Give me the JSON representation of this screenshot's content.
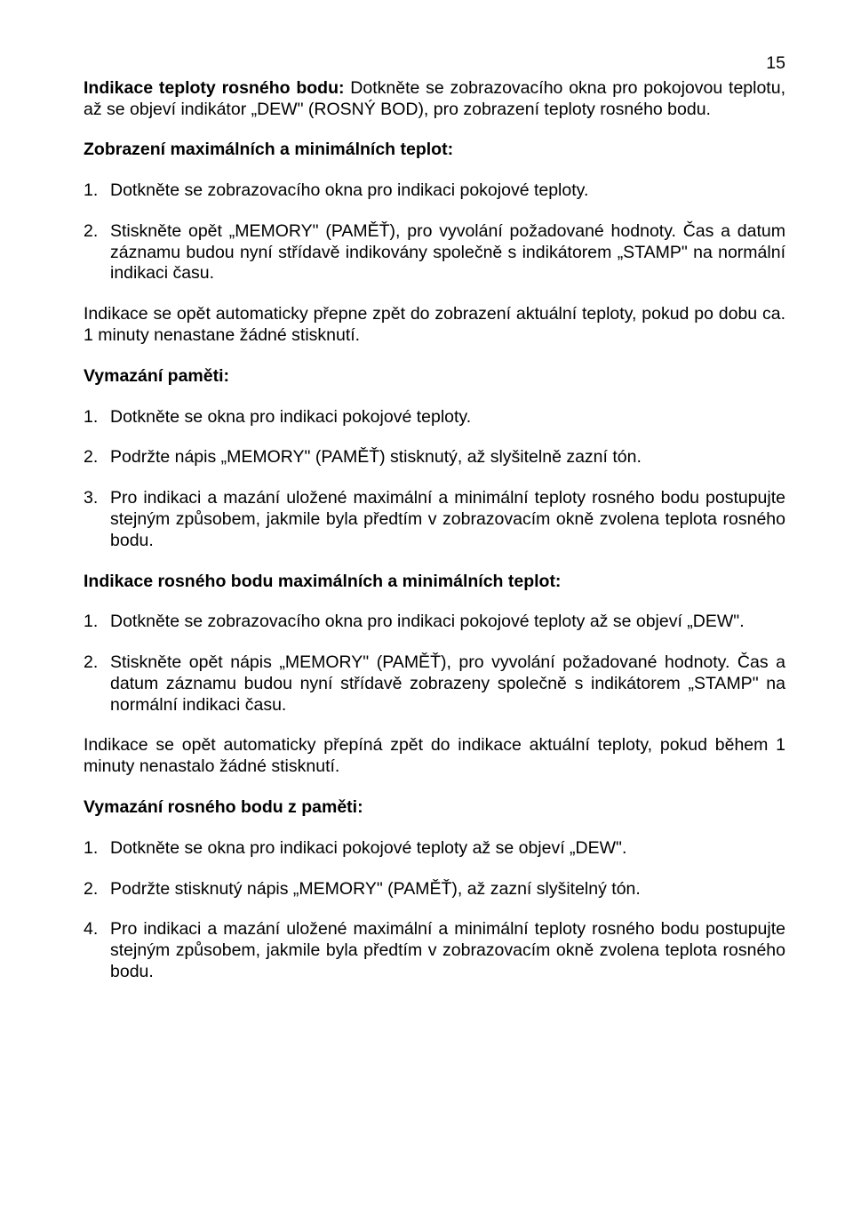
{
  "page_number": "15",
  "p1": {
    "bold": "Indikace teploty rosného bodu:",
    "rest": " Dotkněte se zobrazovacího okna pro pokojovou teplotu, až se objeví indikátor „DEW\" (ROSNÝ BOD), pro zobrazení teploty rosného bodu."
  },
  "h1": "Zobrazení maximálních a minimálních teplot:",
  "list1": [
    {
      "n": "1.",
      "t": "Dotkněte se zobrazovacího okna pro indikaci pokojové teploty."
    },
    {
      "n": "2.",
      "t": "Stiskněte opět „MEMORY\" (PAMĚŤ), pro vyvolání požadované hodnoty. Čas a datum záznamu budou nyní střídavě indikovány společně s indikátorem „STAMP\" na normální indikaci času."
    }
  ],
  "p2": "Indikace se opět automaticky přepne zpět do zobrazení aktuální teploty, pokud po dobu ca. 1 minuty nenastane žádné stisknutí.",
  "h2": "Vymazání paměti:",
  "list2": [
    {
      "n": "1.",
      "t": "Dotkněte se okna pro indikaci pokojové teploty."
    },
    {
      "n": "2.",
      "t": "Podržte nápis „MEMORY\" (PAMĚŤ) stisknutý, až slyšitelně zazní tón."
    },
    {
      "n": "3.",
      "t": "Pro indikaci a mazání uložené maximální a minimální teploty rosného bodu postupujte stejným způsobem, jakmile byla předtím v zobrazovacím okně zvolena teplota rosného bodu."
    }
  ],
  "h3": "Indikace rosného bodu maximálních a minimálních teplot:",
  "list3": [
    {
      "n": "1.",
      "t": "Dotkněte se zobrazovacího okna pro indikaci pokojové teploty až se objeví „DEW\"."
    },
    {
      "n": "2.",
      "t": "Stiskněte opět nápis „MEMORY\" (PAMĚŤ), pro vyvolání požadované hodnoty. Čas a datum záznamu budou nyní střídavě zobrazeny společně s indikátorem „STAMP\" na normální indikaci času."
    }
  ],
  "p3": "Indikace se opět automaticky přepíná zpět do indikace aktuální teploty, pokud během 1 minuty nenastalo žádné stisknutí.",
  "h4": "Vymazání rosného bodu z paměti:",
  "list4": [
    {
      "n": "1.",
      "t": "Dotkněte se okna pro indikaci pokojové teploty až se objeví „DEW\"."
    },
    {
      "n": "2.",
      "t": "Podržte stisknutý nápis „MEMORY\" (PAMĚŤ), až zazní slyšitelný tón."
    },
    {
      "n": "4.",
      "t": "Pro indikaci a mazání uložené maximální a minimální teploty rosného bodu postupujte stejným způsobem, jakmile byla předtím v zobrazovacím okně zvolena teplota rosného bodu."
    }
  ]
}
